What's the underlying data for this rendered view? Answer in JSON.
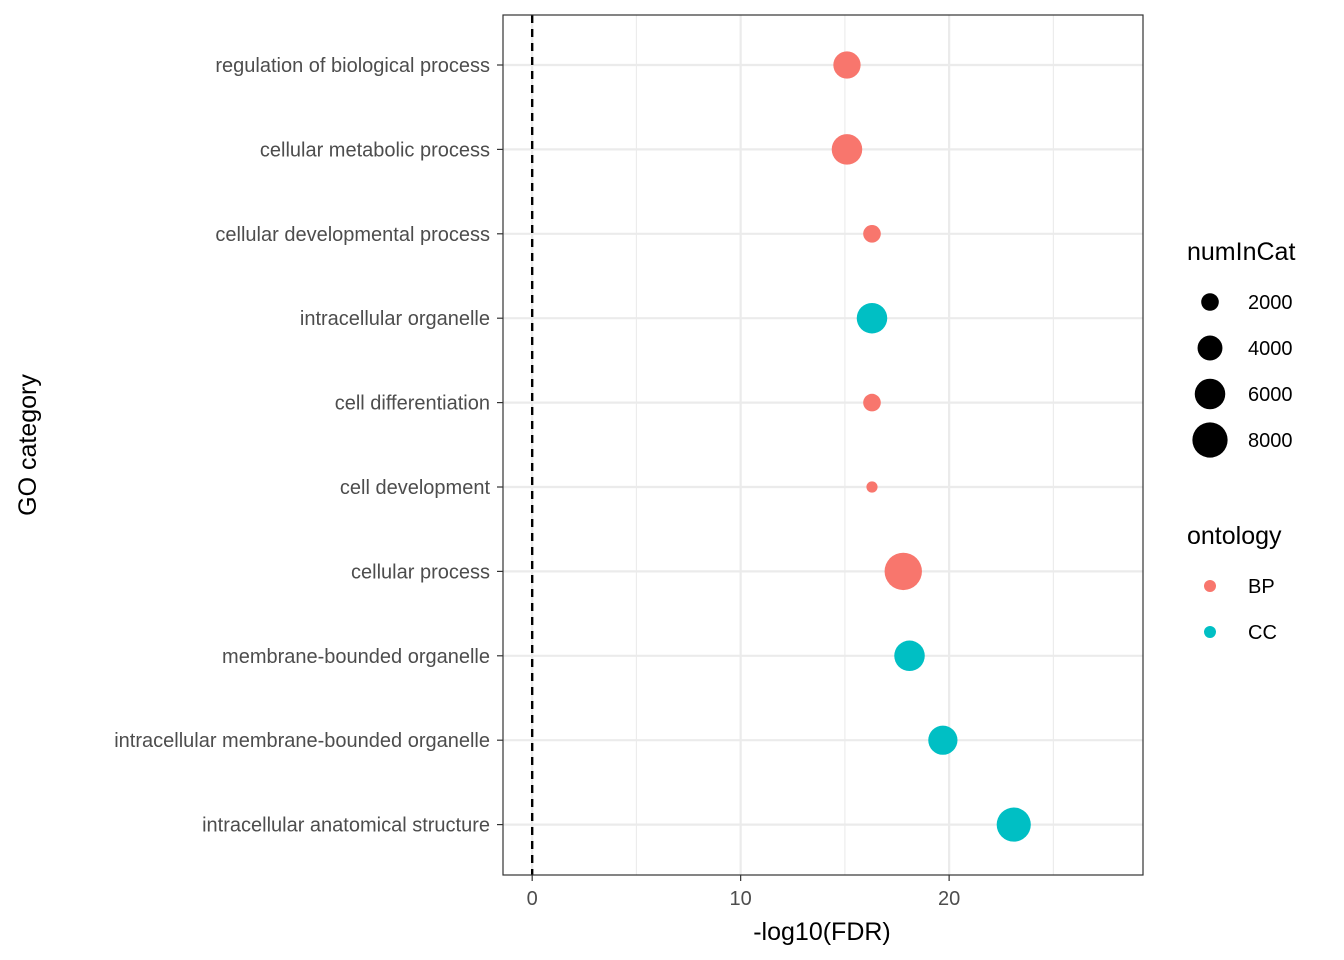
{
  "chart_data": {
    "type": "scatter",
    "xlabel": "-log10(FDR)",
    "ylabel": "GO category",
    "xlim": [
      -1.4,
      29.3
    ],
    "x_ticks": [
      0,
      10,
      20
    ],
    "x_minor_ticks": [
      5,
      15,
      25
    ],
    "reference_line": {
      "x": 0,
      "style": "dashed"
    },
    "grid": true,
    "categories": [
      "regulation of biological process",
      "cellular metabolic process",
      "cellular developmental process",
      "intracellular organelle",
      "cell differentiation",
      "cell development",
      "cellular process",
      "membrane-bounded organelle",
      "intracellular membrane-bounded organelle",
      "intracellular anatomical structure"
    ],
    "points": [
      {
        "category": "regulation of biological process",
        "x": 15.1,
        "numInCat": 4800,
        "ontology": "BP"
      },
      {
        "category": "cellular metabolic process",
        "x": 15.1,
        "numInCat": 6000,
        "ontology": "BP"
      },
      {
        "category": "cellular developmental process",
        "x": 16.3,
        "numInCat": 2000,
        "ontology": "BP"
      },
      {
        "category": "intracellular organelle",
        "x": 16.3,
        "numInCat": 6000,
        "ontology": "CC"
      },
      {
        "category": "cell differentiation",
        "x": 16.3,
        "numInCat": 2000,
        "ontology": "BP"
      },
      {
        "category": "cell development",
        "x": 16.3,
        "numInCat": 800,
        "ontology": "BP"
      },
      {
        "category": "cellular process",
        "x": 17.8,
        "numInCat": 9000,
        "ontology": "BP"
      },
      {
        "category": "membrane-bounded organelle",
        "x": 18.1,
        "numInCat": 6000,
        "ontology": "CC"
      },
      {
        "category": "intracellular membrane-bounded organelle",
        "x": 19.7,
        "numInCat": 5500,
        "ontology": "CC"
      },
      {
        "category": "intracellular anatomical structure",
        "x": 23.1,
        "numInCat": 7500,
        "ontology": "CC"
      }
    ],
    "size_legend": {
      "title": "numInCat",
      "entries": [
        {
          "label": "2000",
          "value": 2000
        },
        {
          "label": "4000",
          "value": 4000
        },
        {
          "label": "6000",
          "value": 6000
        },
        {
          "label": "8000",
          "value": 8000
        }
      ]
    },
    "color_legend": {
      "title": "ontology",
      "entries": [
        {
          "label": "BP",
          "color": "#F8766D"
        },
        {
          "label": "CC",
          "color": "#00BFC4"
        }
      ]
    },
    "legend_position": "right"
  }
}
